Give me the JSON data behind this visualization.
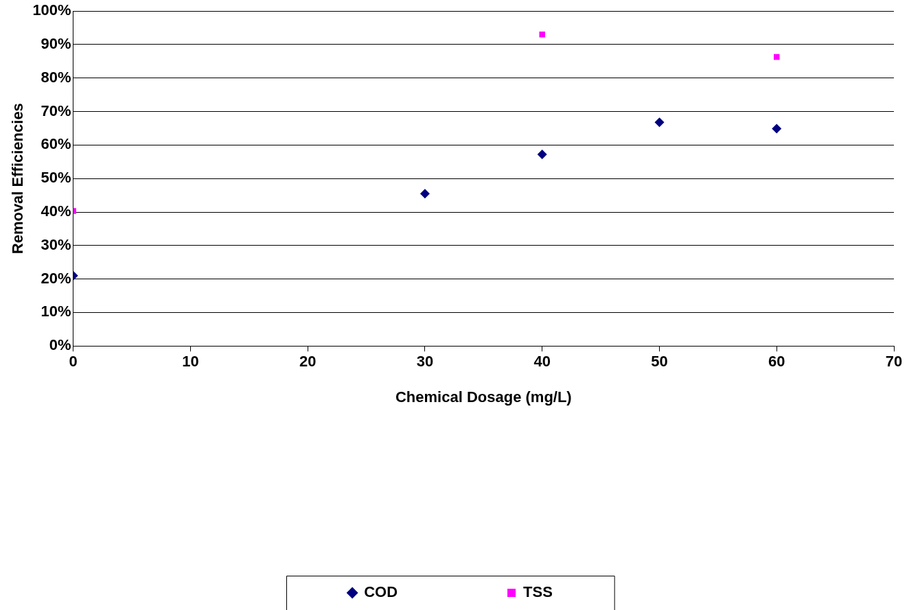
{
  "chart_data": {
    "type": "scatter",
    "xlabel": "Chemical Dosage (mg/L)",
    "ylabel": "Removal Efficiencies",
    "series": [
      {
        "name": "COD",
        "color": "#000080",
        "marker": "diamond",
        "x": [
          0,
          30,
          40,
          50,
          60
        ],
        "values": [
          21,
          45.5,
          57.2,
          66.8,
          64.9
        ]
      },
      {
        "name": "TSS",
        "color": "#ff00ff",
        "marker": "square",
        "x": [
          0,
          40,
          60
        ],
        "values": [
          40.3,
          93,
          86.3
        ]
      }
    ],
    "xlim": [
      0,
      70
    ],
    "xticks": [
      0,
      10,
      20,
      30,
      40,
      50,
      60,
      70
    ],
    "ylim": [
      0,
      100
    ],
    "yticks": [
      {
        "value": 0,
        "label": "0%"
      },
      {
        "value": 10,
        "label": "10%"
      },
      {
        "value": 20,
        "label": "20%"
      },
      {
        "value": 30,
        "label": "30%"
      },
      {
        "value": 40,
        "label": "40%"
      },
      {
        "value": 50,
        "label": "50%"
      },
      {
        "value": 60,
        "label": "60%"
      },
      {
        "value": 70,
        "label": "70%"
      },
      {
        "value": 80,
        "label": "80%"
      },
      {
        "value": 90,
        "label": "90%"
      },
      {
        "value": 100,
        "label": "100%"
      }
    ],
    "grid": "y",
    "legend": "bottom"
  }
}
